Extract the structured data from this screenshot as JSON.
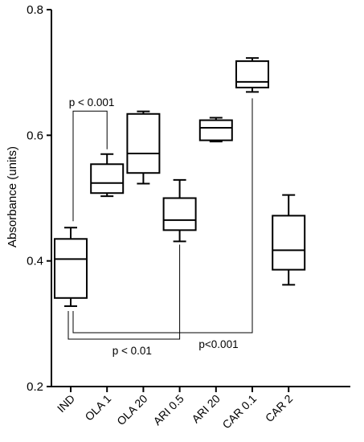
{
  "chart_data": {
    "type": "box",
    "title": "",
    "xlabel": "",
    "ylabel": "Absorbance (units)",
    "ylim": [
      0.2,
      0.8
    ],
    "yticks": [
      "0.2",
      "0.4",
      "0.6",
      "0.8"
    ],
    "categories": [
      "IND",
      "OLA 1",
      "OLA 20",
      "ARI 0.5",
      "ARI 20",
      "CAR 0.1",
      "CAR 2"
    ],
    "boxes": [
      {
        "min": 0.328,
        "q1": 0.341,
        "median": 0.403,
        "q3": 0.435,
        "max": 0.453
      },
      {
        "min": 0.503,
        "q1": 0.508,
        "median": 0.524,
        "q3": 0.554,
        "max": 0.57
      },
      {
        "min": 0.523,
        "q1": 0.54,
        "median": 0.571,
        "q3": 0.634,
        "max": 0.638
      },
      {
        "min": 0.431,
        "q1": 0.449,
        "median": 0.465,
        "q3": 0.5,
        "max": 0.529
      },
      {
        "min": 0.59,
        "q1": 0.592,
        "median": 0.612,
        "q3": 0.624,
        "max": 0.628
      },
      {
        "min": 0.669,
        "q1": 0.676,
        "median": 0.685,
        "q3": 0.718,
        "max": 0.723
      },
      {
        "min": 0.362,
        "q1": 0.386,
        "median": 0.417,
        "q3": 0.472,
        "max": 0.505
      }
    ],
    "annotations": [
      {
        "text": "p < 0.001",
        "from": "IND",
        "to": "OLA 1"
      },
      {
        "text": "p < 0.01",
        "from": "IND",
        "to": "ARI 0.5"
      },
      {
        "text": "p<0.001",
        "from": "IND",
        "to": "CAR 0.1"
      }
    ],
    "grid": false,
    "legend": "none"
  }
}
